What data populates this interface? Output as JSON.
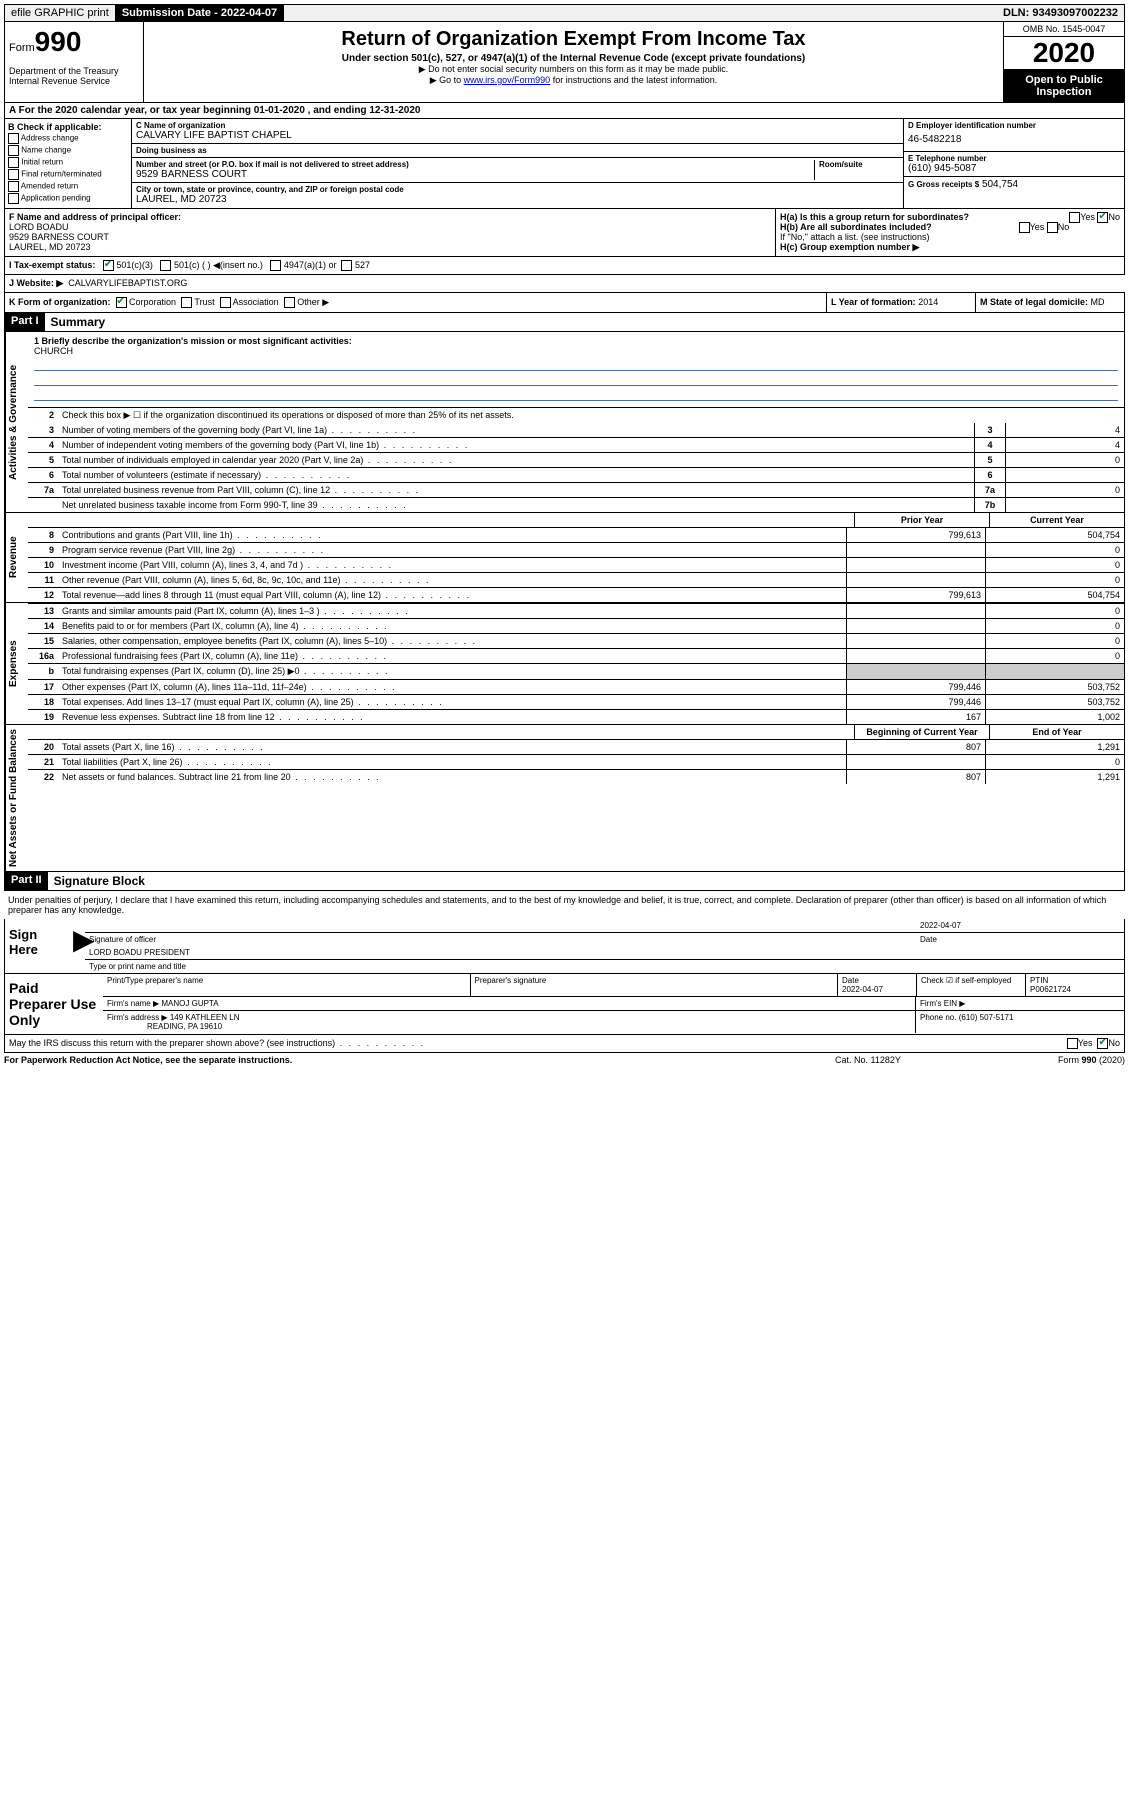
{
  "topbar": {
    "efile": "efile GRAPHIC print",
    "submission_label": "Submission Date",
    "submission_date": "2022-04-07",
    "dln_label": "DLN:",
    "dln": "93493097002232"
  },
  "header": {
    "form_word": "Form",
    "form_num": "990",
    "dept": "Department of the Treasury\nInternal Revenue Service",
    "title": "Return of Organization Exempt From Income Tax",
    "subtitle": "Under section 501(c), 527, or 4947(a)(1) of the Internal Revenue Code (except private foundations)",
    "note1": "▶ Do not enter social security numbers on this form as it may be made public.",
    "note2_pre": "▶ Go to ",
    "note2_link": "www.irs.gov/Form990",
    "note2_post": " for instructions and the latest information.",
    "omb": "OMB No. 1545-0047",
    "year": "2020",
    "inspection": "Open to Public Inspection"
  },
  "section_a": "A For the 2020 calendar year, or tax year beginning 01-01-2020   , and ending 12-31-2020",
  "col_b": {
    "header": "B Check if applicable:",
    "items": [
      "Address change",
      "Name change",
      "Initial return",
      "Final return/terminated",
      "Amended return",
      "Application pending"
    ]
  },
  "col_c": {
    "name_label": "C Name of organization",
    "name": "CALVARY LIFE BAPTIST CHAPEL",
    "dba_label": "Doing business as",
    "dba": "",
    "addr_label": "Number and street (or P.O. box if mail is not delivered to street address)",
    "room_label": "Room/suite",
    "addr": "9529 BARNESS COURT",
    "city_label": "City or town, state or province, country, and ZIP or foreign postal code",
    "city": "LAUREL, MD  20723"
  },
  "col_d": {
    "ein_label": "D Employer identification number",
    "ein": "46-5482218",
    "phone_label": "E Telephone number",
    "phone": "(610) 945-5087",
    "gross_label": "G Gross receipts $",
    "gross": "504,754"
  },
  "row_f": {
    "label": "F  Name and address of principal officer:",
    "name": "LORD BOADU",
    "addr1": "9529 BARNESS COURT",
    "addr2": "LAUREL, MD  20723",
    "ha_label": "H(a)  Is this a group return for subordinates?",
    "ha_yes": "Yes",
    "ha_no": "No",
    "hb_label": "H(b)  Are all subordinates included?",
    "hb_yes": "Yes",
    "hb_no": "No",
    "hb_note": "If \"No,\" attach a list. (see instructions)",
    "hc_label": "H(c)  Group exemption number ▶"
  },
  "tax_status": {
    "label": "I  Tax-exempt status:",
    "opt1": "501(c)(3)",
    "opt2": "501(c) (  ) ◀(insert no.)",
    "opt3": "4947(a)(1) or",
    "opt4": "527"
  },
  "row_j": {
    "label": "J  Website: ▶",
    "value": "CALVARYLIFEBAPTIST.ORG"
  },
  "row_k": {
    "label": "K Form of organization:",
    "opts": [
      "Corporation",
      "Trust",
      "Association",
      "Other ▶"
    ],
    "l_label": "L Year of formation:",
    "l_val": "2014",
    "m_label": "M State of legal domicile:",
    "m_val": "MD"
  },
  "part1": {
    "header": "Part I",
    "title": "Summary",
    "vtab1": "Activities & Governance",
    "line1_label": "1  Briefly describe the organization's mission or most significant activities:",
    "line1_val": "CHURCH",
    "line2": "Check this box ▶ ☐  if the organization discontinued its operations or disposed of more than 25% of its net assets.",
    "lines": [
      {
        "n": "3",
        "d": "Number of voting members of the governing body (Part VI, line 1a)",
        "b": "3",
        "v": "4"
      },
      {
        "n": "4",
        "d": "Number of independent voting members of the governing body (Part VI, line 1b)",
        "b": "4",
        "v": "4"
      },
      {
        "n": "5",
        "d": "Total number of individuals employed in calendar year 2020 (Part V, line 2a)",
        "b": "5",
        "v": "0"
      },
      {
        "n": "6",
        "d": "Total number of volunteers (estimate if necessary)",
        "b": "6",
        "v": ""
      },
      {
        "n": "7a",
        "d": "Total unrelated business revenue from Part VIII, column (C), line 12",
        "b": "7a",
        "v": "0"
      },
      {
        "n": "",
        "d": "Net unrelated business taxable income from Form 990-T, line 39",
        "b": "7b",
        "v": ""
      }
    ],
    "vtab2": "Revenue",
    "col_prior": "Prior Year",
    "col_current": "Current Year",
    "revenue": [
      {
        "n": "8",
        "d": "Contributions and grants (Part VIII, line 1h)",
        "p": "799,613",
        "c": "504,754"
      },
      {
        "n": "9",
        "d": "Program service revenue (Part VIII, line 2g)",
        "p": "",
        "c": "0"
      },
      {
        "n": "10",
        "d": "Investment income (Part VIII, column (A), lines 3, 4, and 7d )",
        "p": "",
        "c": "0"
      },
      {
        "n": "11",
        "d": "Other revenue (Part VIII, column (A), lines 5, 6d, 8c, 9c, 10c, and 11e)",
        "p": "",
        "c": "0"
      },
      {
        "n": "12",
        "d": "Total revenue—add lines 8 through 11 (must equal Part VIII, column (A), line 12)",
        "p": "799,613",
        "c": "504,754"
      }
    ],
    "vtab3": "Expenses",
    "expenses": [
      {
        "n": "13",
        "d": "Grants and similar amounts paid (Part IX, column (A), lines 1–3 )",
        "p": "",
        "c": "0"
      },
      {
        "n": "14",
        "d": "Benefits paid to or for members (Part IX, column (A), line 4)",
        "p": "",
        "c": "0"
      },
      {
        "n": "15",
        "d": "Salaries, other compensation, employee benefits (Part IX, column (A), lines 5–10)",
        "p": "",
        "c": "0"
      },
      {
        "n": "16a",
        "d": "Professional fundraising fees (Part IX, column (A), line 11e)",
        "p": "",
        "c": "0"
      },
      {
        "n": "b",
        "d": "Total fundraising expenses (Part IX, column (D), line 25) ▶0",
        "p": "grey",
        "c": "grey"
      },
      {
        "n": "17",
        "d": "Other expenses (Part IX, column (A), lines 11a–11d, 11f–24e)",
        "p": "799,446",
        "c": "503,752"
      },
      {
        "n": "18",
        "d": "Total expenses. Add lines 13–17 (must equal Part IX, column (A), line 25)",
        "p": "799,446",
        "c": "503,752"
      },
      {
        "n": "19",
        "d": "Revenue less expenses. Subtract line 18 from line 12",
        "p": "167",
        "c": "1,002"
      }
    ],
    "vtab4": "Net Assets or Fund Balances",
    "col_begin": "Beginning of Current Year",
    "col_end": "End of Year",
    "assets": [
      {
        "n": "20",
        "d": "Total assets (Part X, line 16)",
        "p": "807",
        "c": "1,291"
      },
      {
        "n": "21",
        "d": "Total liabilities (Part X, line 26)",
        "p": "",
        "c": "0"
      },
      {
        "n": "22",
        "d": "Net assets or fund balances. Subtract line 21 from line 20",
        "p": "807",
        "c": "1,291"
      }
    ]
  },
  "part2": {
    "header": "Part II",
    "title": "Signature Block",
    "perjury": "Under penalties of perjury, I declare that I have examined this return, including accompanying schedules and statements, and to the best of my knowledge and belief, it is true, correct, and complete. Declaration of preparer (other than officer) is based on all information of which preparer has any knowledge.",
    "sign_here": "Sign Here",
    "sig_officer": "Signature of officer",
    "date": "Date",
    "sig_date": "2022-04-07",
    "officer_name": "LORD BOADU  PRESIDENT",
    "type_name": "Type or print name and title",
    "paid": "Paid Preparer Use Only",
    "prep_name_label": "Print/Type preparer's name",
    "prep_sig_label": "Preparer's signature",
    "prep_date_label": "Date",
    "prep_date": "2022-04-07",
    "check_self": "Check ☑ if self-employed",
    "ptin_label": "PTIN",
    "ptin": "P00621724",
    "firm_name_label": "Firm's name   ▶",
    "firm_name": "MANOJ GUPTA",
    "firm_ein_label": "Firm's EIN ▶",
    "firm_addr_label": "Firm's address ▶",
    "firm_addr": "149 KATHLEEN LN",
    "firm_city": "READING, PA  19610",
    "firm_phone_label": "Phone no.",
    "firm_phone": "(610) 507-5171",
    "irs_discuss": "May the IRS discuss this return with the preparer shown above? (see instructions)",
    "yes": "Yes",
    "no": "No"
  },
  "footer": {
    "left": "For Paperwork Reduction Act Notice, see the separate instructions.",
    "mid": "Cat. No. 11282Y",
    "right": "Form 990 (2020)"
  }
}
